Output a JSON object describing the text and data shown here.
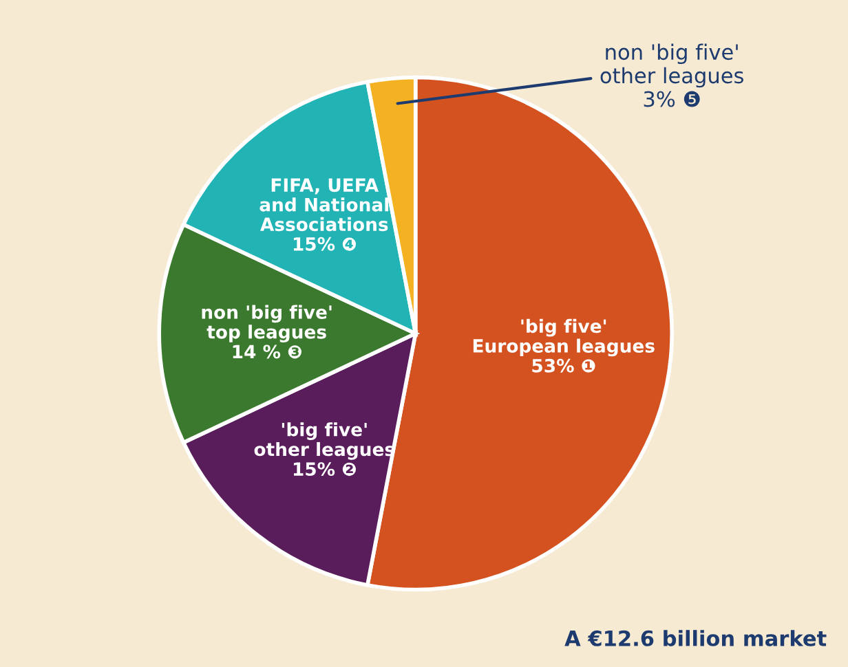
{
  "chart_data": {
    "type": "pie",
    "categories": [
      "'big five'\nEuropean leagues",
      "'big five'\nother leagues",
      "non 'big five'\ntop leagues",
      "FIFA, UEFA\nand National\nAssociations",
      "non 'big five'\nother leagues"
    ],
    "values": [
      53,
      15,
      14,
      15,
      3
    ],
    "value_labels": [
      "53% ❶",
      "15% ❷",
      "14 % ❸",
      "15% ❹",
      "3% ❺"
    ],
    "colors": [
      "#d4521f",
      "#5a1d5c",
      "#3b7a2e",
      "#22b3b5",
      "#f4b223"
    ],
    "annotations": [
      "A €12.6 billion market"
    ]
  }
}
